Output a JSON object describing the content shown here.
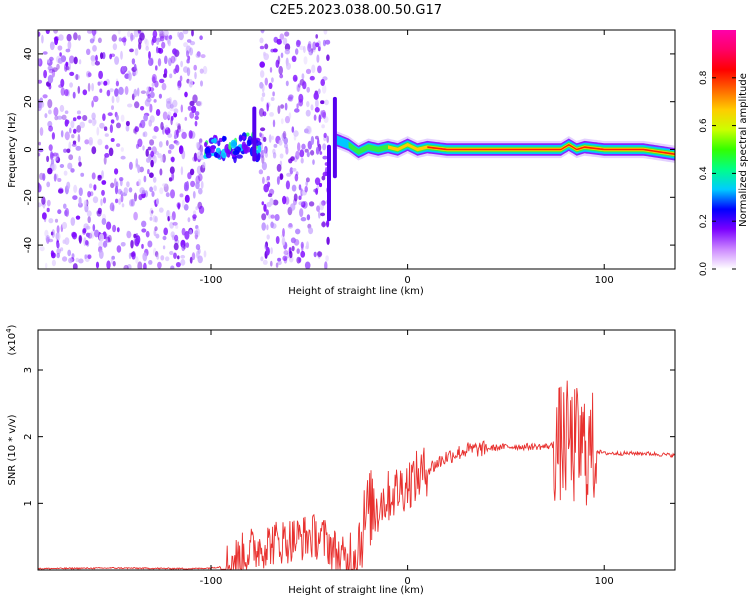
{
  "title": "C2E5.2023.038.00.50.G17",
  "chart_data": [
    {
      "type": "heatmap",
      "xlabel": "Height of straight line (km)",
      "ylabel": "Frequency (Hz)",
      "xlim": [
        -188,
        136
      ],
      "ylim": [
        -50,
        50
      ],
      "xticks": [
        -100,
        0,
        100
      ],
      "yticks": [
        -40,
        -20,
        0,
        20,
        40
      ],
      "colorbar": {
        "label": "Normalized spectral amplitude",
        "range": [
          0.0,
          1.0
        ],
        "ticks": [
          0.0,
          0.2,
          0.4,
          0.6,
          0.8
        ],
        "colors": [
          "#ffffff",
          "#cc88ff",
          "#7a00ff",
          "#0000ff",
          "#00ccff",
          "#00ff88",
          "#33ff00",
          "#ccff00",
          "#ffcc00",
          "#ff6600",
          "#ff0000",
          "#ff0066",
          "#ff00aa"
        ]
      },
      "noise_regions_km": [
        [
          -188,
          -103
        ],
        [
          -75,
          -40
        ]
      ],
      "signal_trace": {
        "x": [
          -103,
          -95,
          -88,
          -80,
          -76,
          -60,
          -45,
          -40,
          -36,
          -30,
          -25,
          -20,
          -15,
          -10,
          -5,
          0,
          5,
          10,
          20,
          40,
          60,
          78,
          82,
          86,
          90,
          100,
          110,
          120,
          136
        ],
        "y": [
          0,
          1,
          0,
          3,
          0,
          0,
          0,
          -2,
          4,
          2,
          -1,
          1,
          0,
          1,
          0,
          2,
          0,
          1,
          0,
          0,
          0,
          0,
          2,
          0,
          1,
          0,
          0,
          0,
          -2
        ]
      }
    },
    {
      "type": "line",
      "xlabel": "Height of straight line (km)",
      "ylabel": "SNR (10 * v/v)",
      "yscale_label": "(x10",
      "yscale_exp": "4",
      "xlim": [
        -188,
        136
      ],
      "ylim": [
        0,
        3.6
      ],
      "xticks": [
        -100,
        0,
        100
      ],
      "yticks": [
        1,
        2,
        3
      ],
      "color": "#e8312f",
      "series": [
        {
          "x": [
            -188,
            -150,
            -110,
            -100,
            -95,
            -90,
            -85,
            -80,
            -70,
            -60,
            -50,
            -45,
            -40,
            -35,
            -30,
            -25,
            -20,
            -15,
            -10,
            -5,
            0,
            10,
            20,
            30,
            40,
            50,
            60,
            70,
            75,
            78,
            80,
            82,
            84,
            86,
            88,
            90,
            92,
            95,
            100,
            110,
            120,
            136
          ],
          "y": [
            0.02,
            0.03,
            0.02,
            0.03,
            0.05,
            0.1,
            0.2,
            0.3,
            0.4,
            0.45,
            0.5,
            0.5,
            0.4,
            0.2,
            0.1,
            0.4,
            0.9,
            1.0,
            1.1,
            1.2,
            1.3,
            1.5,
            1.7,
            1.8,
            1.82,
            1.85,
            1.85,
            1.85,
            1.87,
            1.9,
            1.9,
            2.0,
            1.8,
            1.9,
            1.8,
            1.85,
            1.8,
            1.8,
            1.75,
            1.75,
            1.75,
            1.72
          ]
        }
      ]
    }
  ]
}
